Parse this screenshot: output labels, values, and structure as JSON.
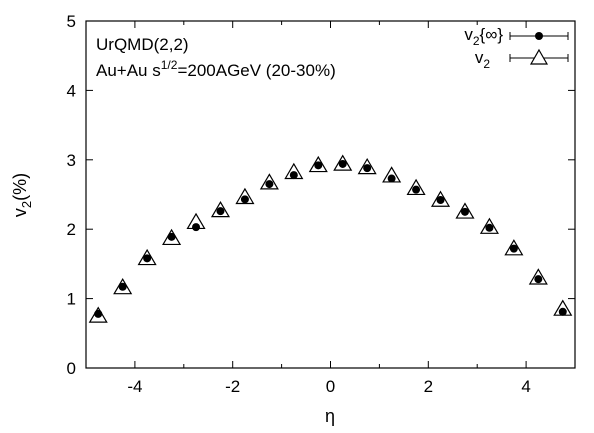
{
  "chart_data": {
    "type": "scatter",
    "xlabel": "η",
    "ylabel": {
      "base": "v",
      "sub": "2",
      "rest": "(%)"
    },
    "xlim": [
      -5,
      5
    ],
    "ylim": [
      0,
      5
    ],
    "xticks": [
      -4,
      -2,
      0,
      2,
      4
    ],
    "yticks": [
      0,
      1,
      2,
      3,
      4,
      5
    ],
    "grid": false,
    "legend_position": "top-right",
    "annotations": [
      {
        "text": "UrQMD(2,2)"
      },
      {
        "pre": "Au+Au s",
        "sup": "1/2",
        "post": "=200AGeV (20-30%)"
      }
    ],
    "reference_line": {
      "y": 0,
      "style": "dotted"
    },
    "x": [
      -4.75,
      -4.25,
      -3.75,
      -3.25,
      -2.75,
      -2.25,
      -1.75,
      -1.25,
      -0.75,
      -0.25,
      0.25,
      0.75,
      1.25,
      1.75,
      2.25,
      2.75,
      3.25,
      3.75,
      4.25,
      4.75
    ],
    "series": [
      {
        "legend": {
          "base": "v",
          "sub": "2",
          "rest": "{∞}"
        },
        "marker": "filled-circle",
        "values": [
          0.78,
          1.17,
          1.58,
          1.89,
          2.03,
          2.26,
          2.43,
          2.65,
          2.78,
          2.92,
          2.94,
          2.88,
          2.73,
          2.57,
          2.42,
          2.25,
          2.02,
          1.72,
          1.28,
          0.81
        ]
      },
      {
        "legend": {
          "base": "v",
          "sub": "2",
          "rest": ""
        },
        "marker": "open-triangle",
        "values": [
          0.74,
          1.15,
          1.57,
          1.86,
          2.09,
          2.26,
          2.45,
          2.66,
          2.81,
          2.91,
          2.93,
          2.88,
          2.76,
          2.58,
          2.41,
          2.24,
          2.02,
          1.71,
          1.29,
          0.84
        ]
      }
    ]
  }
}
